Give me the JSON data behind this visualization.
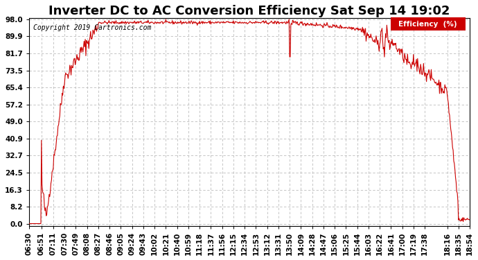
{
  "title": "Inverter DC to AC Conversion Efficiency Sat Sep 14 19:02",
  "copyright": "Copyright 2019 Cartronics.com",
  "legend_label": "Efficiency  (%)",
  "legend_bg": "#cc0000",
  "legend_text_color": "#ffffff",
  "line_color": "#cc0000",
  "bg_color": "#ffffff",
  "grid_color": "#bbbbbb",
  "yticks": [
    0.0,
    8.2,
    16.3,
    24.5,
    32.7,
    40.9,
    49.0,
    57.2,
    65.4,
    73.5,
    81.7,
    89.9,
    98.0
  ],
  "ymin": 0.0,
  "ymax": 98.0,
  "title_fontsize": 13,
  "axis_fontsize": 8,
  "tick_fontsize": 7.5
}
